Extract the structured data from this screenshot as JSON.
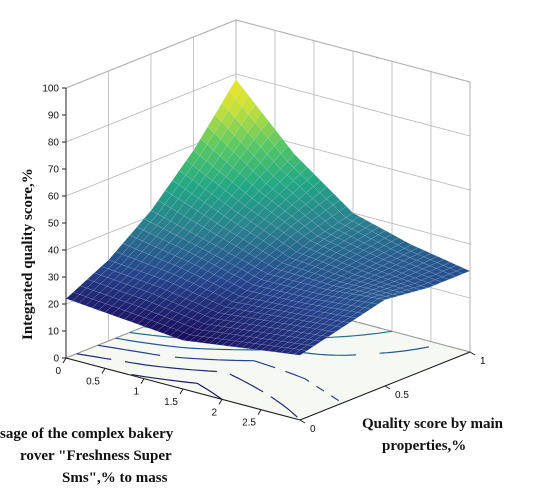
{
  "chart_data": {
    "type": "surface",
    "zlabel": "Integrated quality score,%",
    "xlabel_lines": [
      "sage of the complex bakery",
      "rover \"Freshness Super",
      "Sms\",% to mass"
    ],
    "ylabel_lines": [
      "Quality score by main",
      "properties,%"
    ],
    "x_axis": {
      "range": [
        0,
        3
      ],
      "ticks": [
        "0",
        "0.5",
        "1",
        "1.5",
        "2",
        "2.5"
      ]
    },
    "y_axis": {
      "range": [
        0,
        1
      ],
      "ticks": [
        "0",
        "0.5",
        "1"
      ]
    },
    "z_axis": {
      "range": [
        0,
        100
      ],
      "ticks": [
        "0",
        "10",
        "20",
        "30",
        "40",
        "50",
        "60",
        "70",
        "80",
        "90",
        "100"
      ]
    },
    "grid": true,
    "colormap": [
      "#1b0c5a",
      "#26448c",
      "#2a7f8e",
      "#22a884",
      "#59c864",
      "#c5e03a",
      "#fde725"
    ],
    "surface_samples": {
      "x": [
        0,
        0.75,
        1.5,
        2.25,
        3
      ],
      "y": [
        0,
        0.25,
        0.5,
        0.75,
        1
      ],
      "z": [
        [
          22,
          20,
          18,
          21,
          24
        ],
        [
          30,
          28,
          24,
          26,
          28
        ],
        [
          42,
          36,
          30,
          30,
          32
        ],
        [
          58,
          46,
          36,
          32,
          30
        ],
        [
          78,
          56,
          40,
          34,
          30
        ]
      ]
    }
  }
}
